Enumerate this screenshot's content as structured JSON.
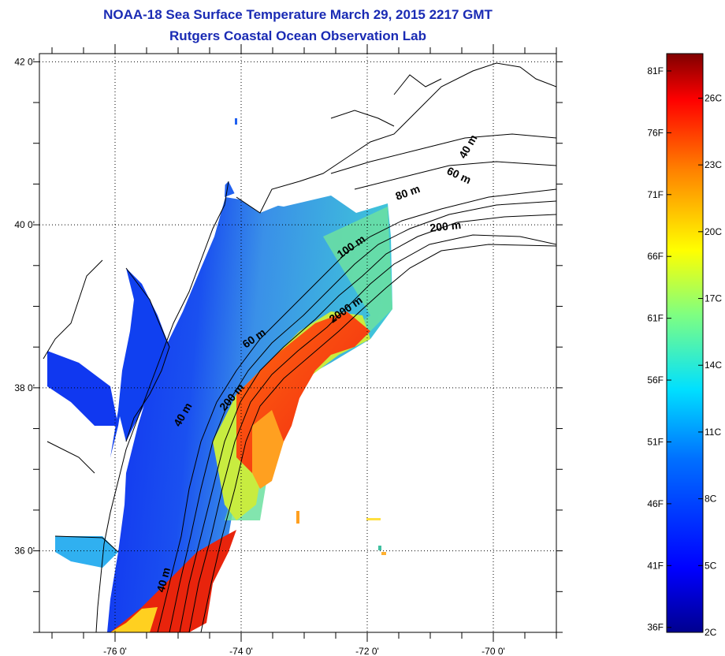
{
  "title_line1": "NOAA-18 Sea Surface Temperature March 29, 2015 2217 GMT",
  "title_line2": "Rutgers Coastal Ocean Observation Lab",
  "axes": {
    "x_ticks": [
      {
        "lon": -76,
        "label": "-76 0'"
      },
      {
        "lon": -74,
        "label": "-74 0'"
      },
      {
        "lon": -72,
        "label": "-72 0'"
      },
      {
        "lon": -70,
        "label": "-70 0'"
      }
    ],
    "y_ticks": [
      {
        "lat": 42,
        "label": "42 0'"
      },
      {
        "lat": 40,
        "label": "40 0'"
      },
      {
        "lat": 38,
        "label": "38 0'"
      },
      {
        "lat": 36,
        "label": "36 0'"
      }
    ],
    "lon_range": [
      -77.2,
      -69.0
    ],
    "lat_range": [
      35.0,
      42.1
    ]
  },
  "contour_labels": [
    "40 m",
    "60 m",
    "80 m",
    "200 m",
    "100 m",
    "2000 m",
    "60 m",
    "200 m",
    "40 m",
    "40 m"
  ],
  "colorbar": {
    "range_c": [
      2,
      28
    ],
    "celsius_labels": [
      "26C",
      "23C",
      "20C",
      "17C",
      "14C",
      "11C",
      "8C",
      "5C",
      "2C"
    ],
    "fahrenheit_labels": [
      "81F",
      "76F",
      "71F",
      "66F",
      "61F",
      "56F",
      "51F",
      "46F",
      "41F",
      "36F"
    ],
    "colors": [
      "#00008f",
      "#0000ff",
      "#0080ff",
      "#00ffff",
      "#80ff80",
      "#ffff00",
      "#ff8000",
      "#ff0000",
      "#800000"
    ]
  }
}
